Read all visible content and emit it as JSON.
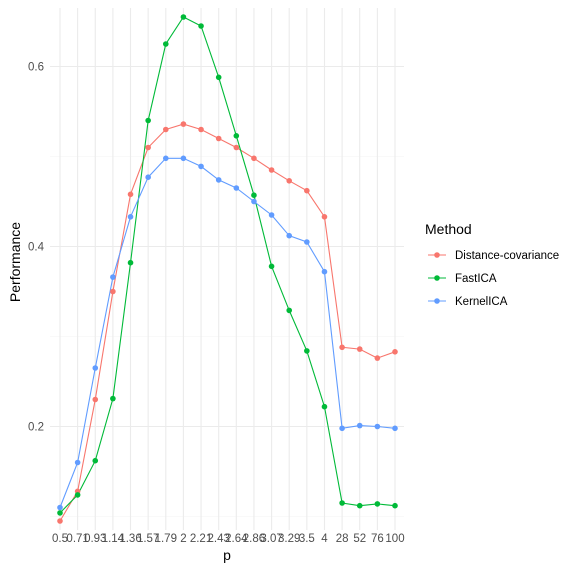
{
  "chart_data": {
    "type": "line",
    "xlabel": "p",
    "ylabel": "Performance",
    "categories": [
      "0.5",
      "0.71",
      "0.93",
      "1.14",
      "1.36",
      "1.57",
      "1.79",
      "2",
      "2.21",
      "2.43",
      "2.64",
      "2.86",
      "3.07",
      "3.29",
      "3.5",
      "4",
      "28",
      "52",
      "76",
      "100"
    ],
    "x_tick_labels": [
      "0.5",
      "0.71",
      "0.93",
      "1.14",
      "1.36",
      "1.57",
      "1.79",
      "2",
      "2.21",
      "2.43",
      "2.64",
      "2.86",
      "3.07",
      "3.29",
      "3.5",
      "4",
      "28",
      "52",
      "76",
      "100"
    ],
    "y_ticks": [
      0.2,
      0.4,
      0.6
    ],
    "y_tick_labels": [
      "0.2",
      "0.4",
      "0.6"
    ],
    "ylim": [
      0.085,
      0.665
    ],
    "grid": true,
    "legend": {
      "title": "Method",
      "placement": "right"
    },
    "series": [
      {
        "name": "Distance-covariance",
        "color": "#F8766D",
        "values": [
          0.095,
          0.128,
          0.23,
          0.35,
          0.458,
          0.51,
          0.53,
          0.536,
          0.53,
          0.52,
          0.51,
          0.498,
          0.485,
          0.473,
          0.462,
          0.433,
          0.288,
          0.286,
          0.276,
          0.283
        ]
      },
      {
        "name": "FastICA",
        "color": "#00BA38",
        "values": [
          0.104,
          0.124,
          0.162,
          0.231,
          0.382,
          0.54,
          0.625,
          0.655,
          0.645,
          0.588,
          0.523,
          0.457,
          0.378,
          0.329,
          0.284,
          0.222,
          0.115,
          0.112,
          0.114,
          0.112
        ]
      },
      {
        "name": "KernelICA",
        "color": "#619CFF",
        "values": [
          0.11,
          0.16,
          0.265,
          0.366,
          0.433,
          0.477,
          0.498,
          0.498,
          0.489,
          0.474,
          0.465,
          0.45,
          0.435,
          0.412,
          0.405,
          0.372,
          0.198,
          0.201,
          0.2,
          0.198
        ]
      }
    ]
  }
}
